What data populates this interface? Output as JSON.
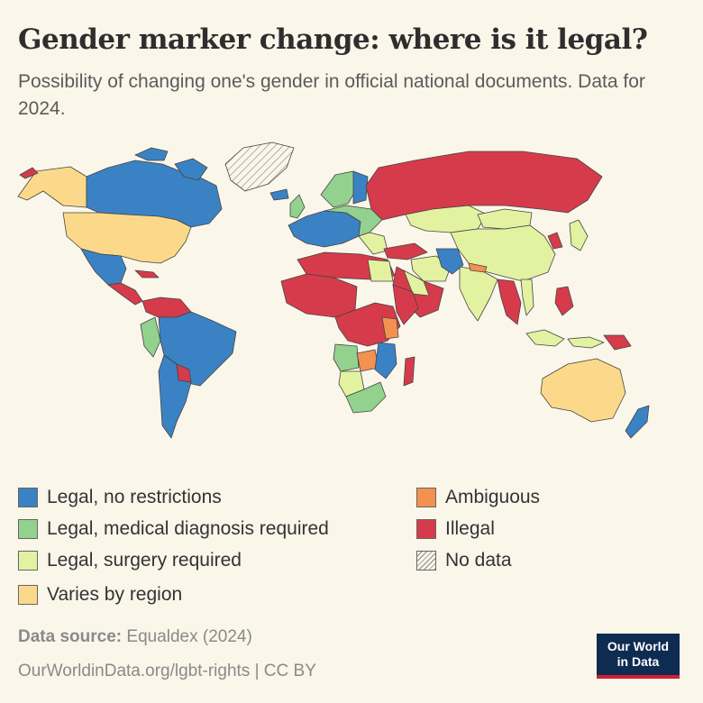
{
  "title": "Gender marker change: where is it legal?",
  "subtitle": "Possibility of changing one's gender in official national documents. Data for 2024.",
  "legend": [
    {
      "label": "Legal, no restrictions",
      "color": "#3b82c4",
      "hatch": false
    },
    {
      "label": "Legal, medical diagnosis required",
      "color": "#93d18f",
      "hatch": false
    },
    {
      "label": "Legal, surgery required",
      "color": "#e2f2a0",
      "hatch": false
    },
    {
      "label": "Varies by region",
      "color": "#fcd98a",
      "hatch": false
    },
    {
      "label": "Ambiguous",
      "color": "#f39150",
      "hatch": false
    },
    {
      "label": "Illegal",
      "color": "#d63b4b",
      "hatch": false
    },
    {
      "label": "No data",
      "color": "",
      "hatch": true
    }
  ],
  "source_label": "Data source:",
  "source_value": "Equaldex (2024)",
  "source_url": "OurWorldinData.org/lgbt-rights | CC BY",
  "logo_line1": "Our World",
  "logo_line2": "in Data"
}
